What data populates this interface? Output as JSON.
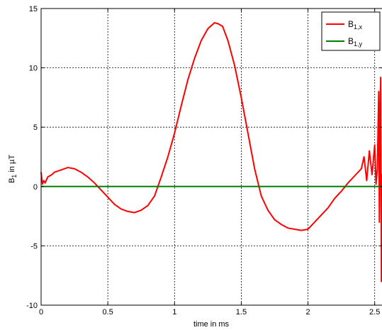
{
  "chart_data": {
    "type": "line",
    "xlabel": "time in ms",
    "ylabel": {
      "main": "B",
      "sub": "1",
      "rest": " in µT"
    },
    "xlim": [
      0,
      2.56
    ],
    "ylim": [
      -10,
      15
    ],
    "xticks": [
      0,
      0.5,
      1,
      1.5,
      2,
      2.5
    ],
    "xtick_labels": [
      "0",
      "0.5",
      "1",
      "1.5",
      "2",
      "2.5"
    ],
    "yticks": [
      -10,
      -5,
      0,
      5,
      10,
      15
    ],
    "ytick_labels": [
      "-10",
      "-5",
      "0",
      "5",
      "10",
      "15"
    ],
    "grid": true,
    "grid_style": "dashed",
    "legend_position": "top-right",
    "series": [
      {
        "name": "B1,x",
        "legend": {
          "main": "B",
          "sub": "1,x"
        },
        "color": "#ff0000",
        "x": [
          0,
          0.01,
          0.02,
          0.03,
          0.05,
          0.08,
          0.1,
          0.15,
          0.2,
          0.25,
          0.3,
          0.35,
          0.4,
          0.45,
          0.5,
          0.55,
          0.6,
          0.65,
          0.7,
          0.75,
          0.8,
          0.85,
          0.9,
          0.95,
          1.0,
          1.05,
          1.1,
          1.15,
          1.2,
          1.25,
          1.3,
          1.33,
          1.36,
          1.4,
          1.45,
          1.5,
          1.55,
          1.6,
          1.65,
          1.7,
          1.75,
          1.8,
          1.85,
          1.9,
          1.95,
          2.0,
          2.05,
          2.1,
          2.15,
          2.2,
          2.25,
          2.3,
          2.35,
          2.4,
          2.42,
          2.44,
          2.46,
          2.48,
          2.5,
          2.51,
          2.52,
          2.53,
          2.535,
          2.54,
          2.545,
          2.55,
          2.555,
          2.56
        ],
        "y": [
          1.2,
          0.2,
          0.5,
          0.3,
          0.8,
          1.0,
          1.2,
          1.4,
          1.6,
          1.5,
          1.2,
          0.8,
          0.3,
          -0.3,
          -0.9,
          -1.5,
          -1.9,
          -2.1,
          -2.2,
          -2.0,
          -1.6,
          -0.8,
          0.8,
          2.5,
          4.5,
          6.8,
          9.0,
          10.8,
          12.3,
          13.3,
          13.8,
          13.7,
          13.5,
          12.3,
          10.2,
          7.5,
          4.5,
          1.5,
          -0.8,
          -2.0,
          -2.8,
          -3.2,
          -3.5,
          -3.6,
          -3.7,
          -3.6,
          -3.0,
          -2.4,
          -1.8,
          -1.0,
          -0.4,
          0.3,
          0.9,
          1.5,
          2.5,
          0.5,
          3.0,
          1.0,
          3.5,
          0.2,
          1.5,
          8.0,
          -3.0,
          6.0,
          9.2,
          -8.0,
          1.0,
          0.0
        ]
      },
      {
        "name": "B1,y",
        "legend": {
          "main": "B",
          "sub": "1,y"
        },
        "color": "#008000",
        "x": [
          0,
          2.56
        ],
        "y": [
          0,
          0
        ]
      }
    ]
  }
}
